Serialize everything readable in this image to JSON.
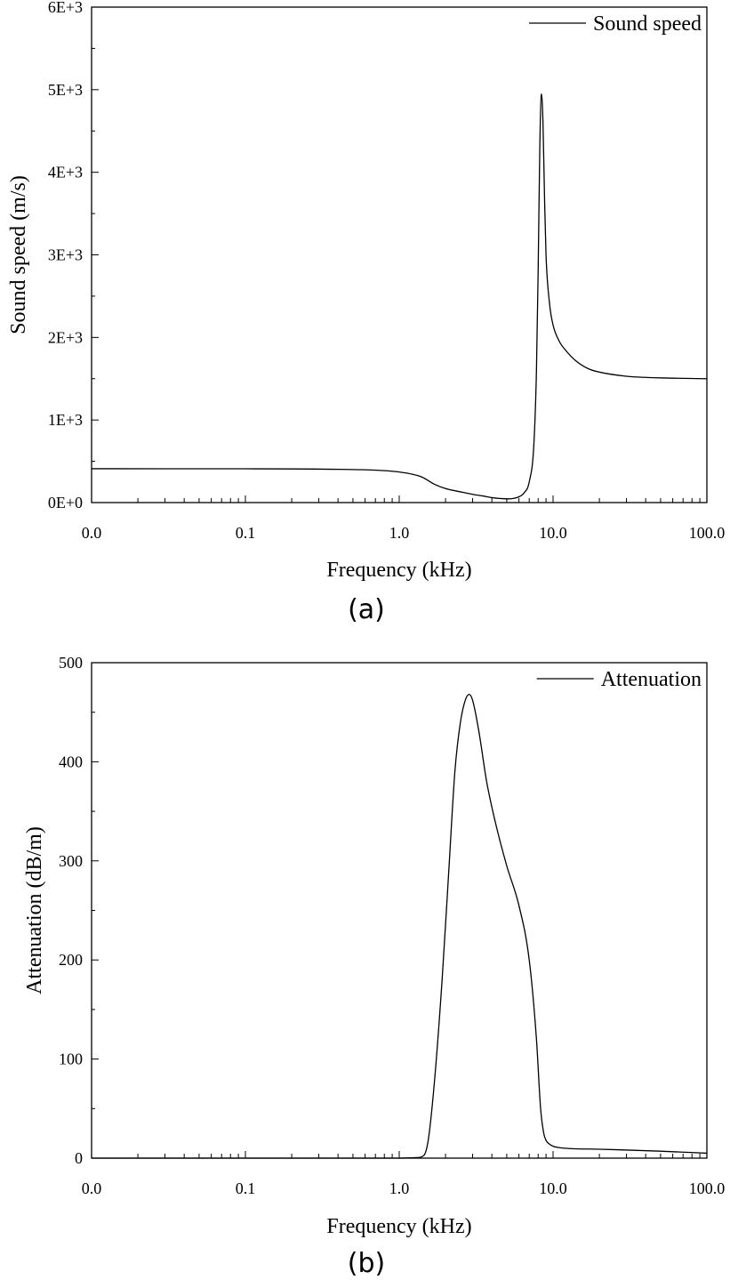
{
  "chart_data": [
    {
      "type": "line",
      "panel_label": "(a)",
      "xlabel": "Frequency (kHz)",
      "ylabel": "Sound speed (m/s)",
      "x_scale": "log",
      "x_ticks": [
        "0.0",
        "0.1",
        "1.0",
        "10.0",
        "100.0"
      ],
      "y_ticks": [
        "0E+0",
        "1E+3",
        "2E+3",
        "3E+3",
        "4E+3",
        "5E+3",
        "6E+3"
      ],
      "ylim": [
        0,
        6000
      ],
      "legend_position": "top-right",
      "grid": false,
      "series": [
        {
          "name": "Sound speed",
          "x": [
            0.01,
            0.1,
            0.5,
            1.0,
            1.4,
            1.7,
            2.0,
            2.5,
            3.0,
            3.5,
            4.0,
            4.5,
            5.0,
            5.5,
            6.0,
            6.5,
            7.0,
            7.5,
            7.8,
            8.0,
            8.2,
            8.4,
            8.6,
            8.8,
            9.0,
            9.5,
            10,
            11,
            12,
            14,
            17,
            20,
            30,
            50,
            100
          ],
          "y": [
            410,
            409,
            400,
            370,
            310,
            220,
            170,
            130,
            100,
            80,
            60,
            50,
            45,
            50,
            70,
            120,
            250,
            700,
            1600,
            2800,
            4300,
            4950,
            4600,
            3700,
            3000,
            2400,
            2150,
            1950,
            1850,
            1720,
            1620,
            1580,
            1530,
            1510,
            1500
          ]
        }
      ]
    },
    {
      "type": "line",
      "panel_label": "(b)",
      "xlabel": "Frequency (kHz)",
      "ylabel": "Attenuation (dB/m)",
      "x_scale": "log",
      "x_ticks": [
        "0.0",
        "0.1",
        "1.0",
        "10.0",
        "100.0"
      ],
      "y_ticks": [
        "0",
        "100",
        "200",
        "300",
        "400",
        "500"
      ],
      "ylim": [
        0,
        500
      ],
      "legend_position": "top-right",
      "grid": false,
      "series": [
        {
          "name": "Attenuation",
          "x": [
            0.01,
            0.1,
            1.0,
            1.3,
            1.45,
            1.55,
            1.7,
            1.9,
            2.1,
            2.3,
            2.5,
            2.7,
            2.85,
            3.0,
            3.3,
            3.7,
            4.2,
            5.0,
            6.0,
            7.0,
            7.8,
            8.3,
            8.7,
            9.0,
            9.5,
            10,
            12,
            20,
            50,
            100
          ],
          "y": [
            0,
            0,
            0,
            0.5,
            3,
            20,
            80,
            180,
            290,
            390,
            440,
            463,
            468,
            462,
            430,
            380,
            340,
            295,
            255,
            200,
            120,
            50,
            25,
            18,
            14,
            12,
            10,
            9,
            7,
            5
          ]
        }
      ]
    }
  ]
}
